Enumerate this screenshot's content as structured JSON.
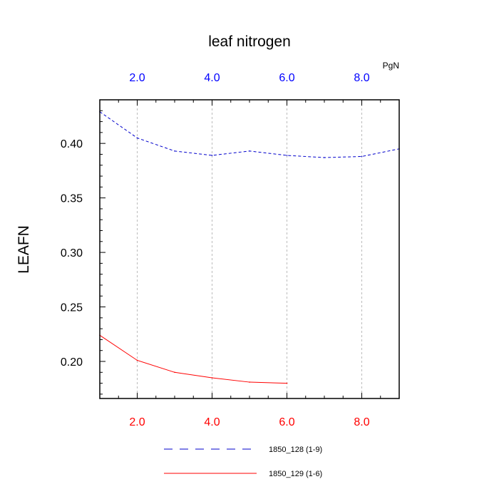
{
  "chart_data": {
    "type": "line",
    "title": "leaf nitrogen",
    "ylabel": "LEAFN",
    "top_axis_unit": "PgN",
    "xlim": [
      1,
      9
    ],
    "ylim": [
      0.166,
      0.44
    ],
    "x_ticks": [
      2,
      4,
      6,
      8
    ],
    "x_tick_labels": [
      "2.0",
      "4.0",
      "6.0",
      "8.0"
    ],
    "y_ticks": [
      0.2,
      0.25,
      0.3,
      0.35,
      0.4
    ],
    "y_tick_labels": [
      "0.20",
      "0.25",
      "0.30",
      "0.35",
      "0.40"
    ],
    "bottom_tick_color": "#ff0000",
    "top_tick_color": "#0000ff",
    "grid": "vertical dotted at major x ticks",
    "legend_placement": "bottom-center",
    "series": [
      {
        "name": "1850_128 (1-9)",
        "color": "#0000cc",
        "style": "dashed",
        "x": [
          1,
          2,
          3,
          4,
          5,
          6,
          7,
          8,
          9
        ],
        "values": [
          0.429,
          0.405,
          0.393,
          0.389,
          0.393,
          0.389,
          0.387,
          0.388,
          0.395
        ]
      },
      {
        "name": "1850_129 (1-6)",
        "color": "#ff0000",
        "style": "solid",
        "x": [
          1,
          2,
          3,
          4,
          5,
          6
        ],
        "values": [
          0.224,
          0.201,
          0.19,
          0.185,
          0.181,
          0.18
        ]
      }
    ]
  }
}
